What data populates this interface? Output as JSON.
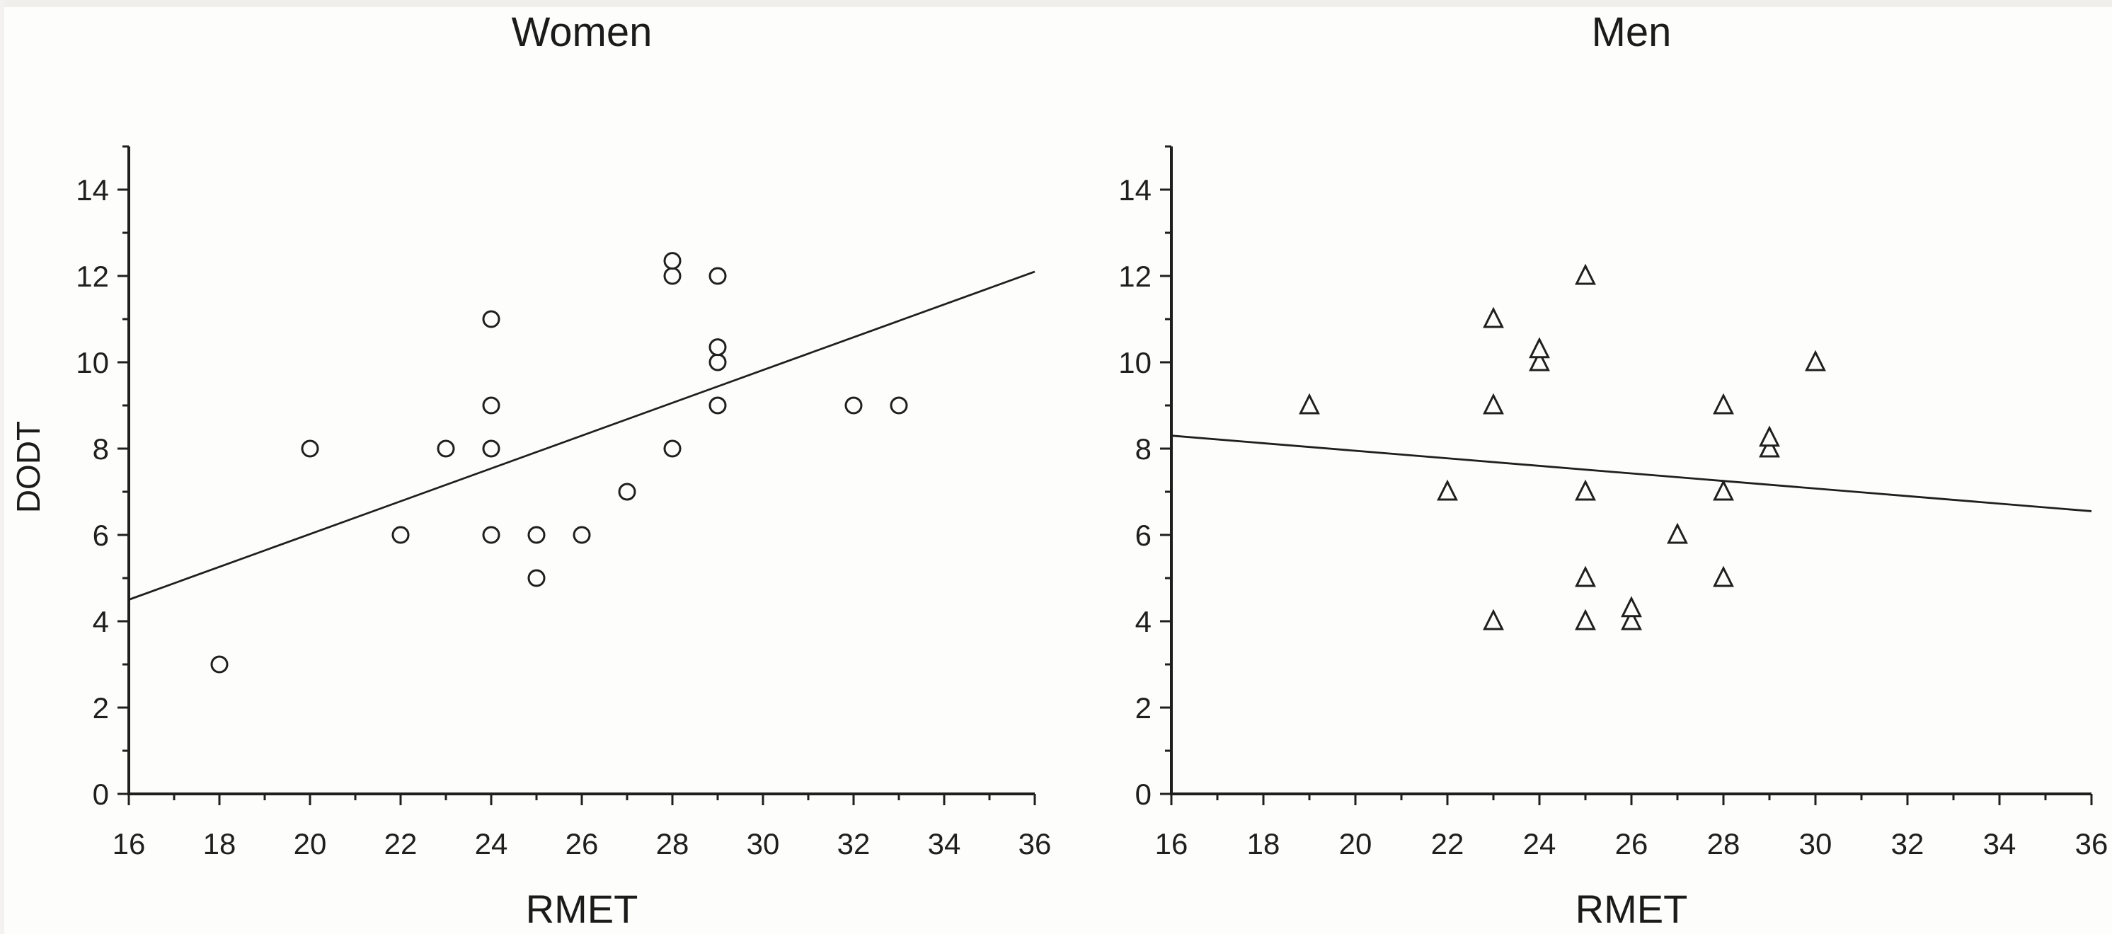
{
  "figure": {
    "background": "#fdfdfb",
    "ink": "#1f1f1f",
    "edge_tint": "#f0efec"
  },
  "chart_data": [
    {
      "type": "scatter",
      "title": "Women",
      "marker": "circle",
      "xlabel": "RMET",
      "ylabel": "DODT",
      "xlim": [
        16,
        36
      ],
      "ylim": [
        0,
        14
      ],
      "xticks": [
        16,
        18,
        20,
        22,
        24,
        26,
        28,
        30,
        32,
        34,
        36
      ],
      "yticks": [
        0,
        2,
        4,
        6,
        8,
        10,
        12,
        14
      ],
      "minor_tick_step": 1,
      "grid": false,
      "legend": "none",
      "points": [
        {
          "x": 18,
          "y": 3
        },
        {
          "x": 20,
          "y": 8
        },
        {
          "x": 22,
          "y": 6
        },
        {
          "x": 23,
          "y": 8
        },
        {
          "x": 24,
          "y": 6
        },
        {
          "x": 24,
          "y": 8
        },
        {
          "x": 24,
          "y": 9
        },
        {
          "x": 24,
          "y": 11
        },
        {
          "x": 25,
          "y": 5
        },
        {
          "x": 25,
          "y": 6
        },
        {
          "x": 26,
          "y": 6
        },
        {
          "x": 27,
          "y": 7
        },
        {
          "x": 28,
          "y": 8
        },
        {
          "x": 28,
          "y": 12
        },
        {
          "x": 28,
          "y": 12.35
        },
        {
          "x": 29,
          "y": 9
        },
        {
          "x": 29,
          "y": 10
        },
        {
          "x": 29,
          "y": 10.35
        },
        {
          "x": 29,
          "y": 12
        },
        {
          "x": 32,
          "y": 9
        },
        {
          "x": 33,
          "y": 9
        }
      ],
      "trendline": {
        "x1": 16,
        "y1": 4.5,
        "x2": 36,
        "y2": 12.1
      }
    },
    {
      "type": "scatter",
      "title": "Men",
      "marker": "triangle",
      "xlabel": "RMET",
      "ylabel": "",
      "xlim": [
        16,
        36
      ],
      "ylim": [
        0,
        14
      ],
      "xticks": [
        16,
        18,
        20,
        22,
        24,
        26,
        28,
        30,
        32,
        34,
        36
      ],
      "yticks": [
        0,
        2,
        4,
        6,
        8,
        10,
        12,
        14
      ],
      "minor_tick_step": 1,
      "grid": false,
      "legend": "none",
      "points": [
        {
          "x": 19,
          "y": 9
        },
        {
          "x": 22,
          "y": 7
        },
        {
          "x": 23,
          "y": 4
        },
        {
          "x": 23,
          "y": 9
        },
        {
          "x": 23,
          "y": 11
        },
        {
          "x": 24,
          "y": 10
        },
        {
          "x": 24,
          "y": 10.3
        },
        {
          "x": 25,
          "y": 4
        },
        {
          "x": 25,
          "y": 5
        },
        {
          "x": 25,
          "y": 7
        },
        {
          "x": 25,
          "y": 12
        },
        {
          "x": 26,
          "y": 4
        },
        {
          "x": 26,
          "y": 4.3
        },
        {
          "x": 27,
          "y": 6
        },
        {
          "x": 28,
          "y": 5
        },
        {
          "x": 28,
          "y": 7
        },
        {
          "x": 28,
          "y": 9
        },
        {
          "x": 29,
          "y": 8
        },
        {
          "x": 29,
          "y": 8.25
        },
        {
          "x": 30,
          "y": 10
        }
      ],
      "trendline": {
        "x1": 16,
        "y1": 8.3,
        "x2": 36,
        "y2": 6.55
      }
    }
  ]
}
